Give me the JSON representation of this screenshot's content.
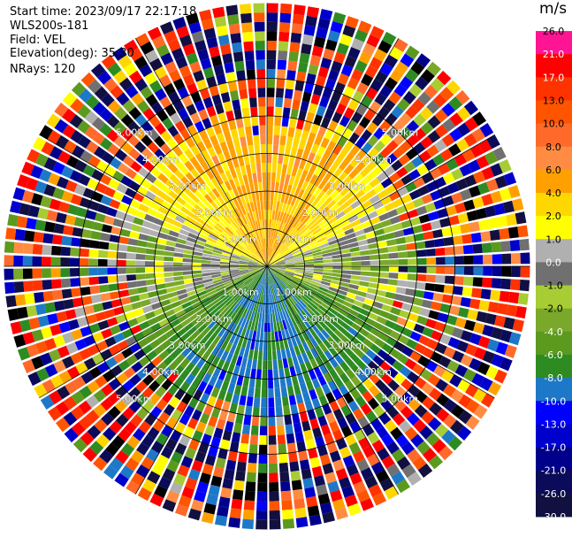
{
  "header": {
    "start_time": "Start time: 2023/09/17 22:17:18",
    "site": "WLS200s-181",
    "field": "Field: VEL",
    "elevation": "Elevation(deg): 35.30",
    "nrays": "NRays: 120"
  },
  "colorbar": {
    "unit": "m/s",
    "levels": [
      "26.0",
      "21.0",
      "17.0",
      "13.0",
      "10.0",
      "8.0",
      "6.0",
      "4.0",
      "2.0",
      "1.0",
      "0.0",
      "-1.0",
      "-2.0",
      "-4.0",
      "-6.0",
      "-8.0",
      "-10.0",
      "-13.0",
      "-17.0",
      "-21.0",
      "-26.0",
      "-30.0"
    ],
    "colors": [
      "#ff1493",
      "#ff0000",
      "#ff3300",
      "#ff5500",
      "#ff6a2a",
      "#ff8c42",
      "#ffa000",
      "#ffd700",
      "#ffff00",
      "#b0b0b0",
      "#707070",
      "#a8cc33",
      "#7aa82a",
      "#5b9a1e",
      "#2e8b22",
      "#1e78c8",
      "#0000ff",
      "#0000cc",
      "#00008b",
      "#0b0b5a",
      "#121040"
    ]
  },
  "chart_data": {
    "type": "heatmap",
    "projection": "polar (PPI radar scan)",
    "field": "VEL",
    "unit": "m/s",
    "n_rays": 120,
    "range_ring_labels": [
      "1.00km",
      "2.00km",
      "3.00km",
      "4.00km",
      "5.00km"
    ],
    "range_rings_km": [
      1,
      2,
      3,
      4,
      5
    ],
    "radial_spokes": 12,
    "max_range_km": 7,
    "pattern_summary": [
      {
        "region": "north near-field",
        "value_range": [
          2,
          10
        ]
      },
      {
        "region": "east/west near-field",
        "value_range": [
          -1,
          1
        ]
      },
      {
        "region": "south near-field",
        "value_range": [
          -8,
          -2
        ]
      },
      {
        "region": "outer rings (noise)",
        "value_range": [
          -30,
          26
        ]
      }
    ]
  }
}
